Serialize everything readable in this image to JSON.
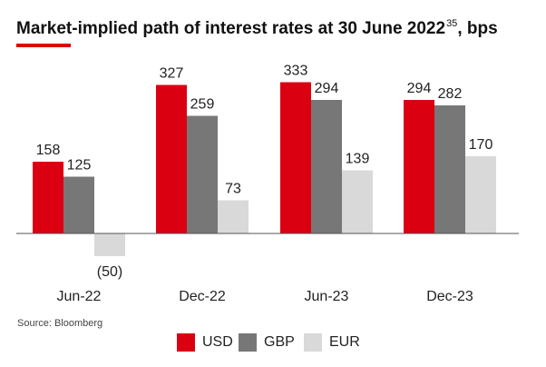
{
  "title": {
    "text": "Market-implied path of interest rates at 30 June 2022",
    "footnote": "35",
    "suffix": ", bps"
  },
  "source": "Source: Bloomberg",
  "colors": {
    "USD": "#db0011",
    "GBP": "#777777",
    "EUR": "#d9d9d9",
    "accent": "#db0011"
  },
  "chart_data": {
    "type": "bar",
    "categories": [
      "Jun-22",
      "Dec-22",
      "Jun-23",
      "Dec-23"
    ],
    "series": [
      {
        "name": "USD",
        "values": [
          158,
          327,
          333,
          294
        ]
      },
      {
        "name": "GBP",
        "values": [
          125,
          259,
          294,
          282
        ]
      },
      {
        "name": "EUR",
        "values": [
          -50,
          73,
          139,
          170
        ]
      }
    ],
    "data_labels": [
      [
        "158",
        "327",
        "333",
        "294"
      ],
      [
        "125",
        "259",
        "294",
        "282"
      ],
      [
        "(50)",
        "73",
        "139",
        "170"
      ]
    ],
    "ylim": [
      -80,
      370
    ],
    "grid": false,
    "legend_position": "bottom"
  }
}
